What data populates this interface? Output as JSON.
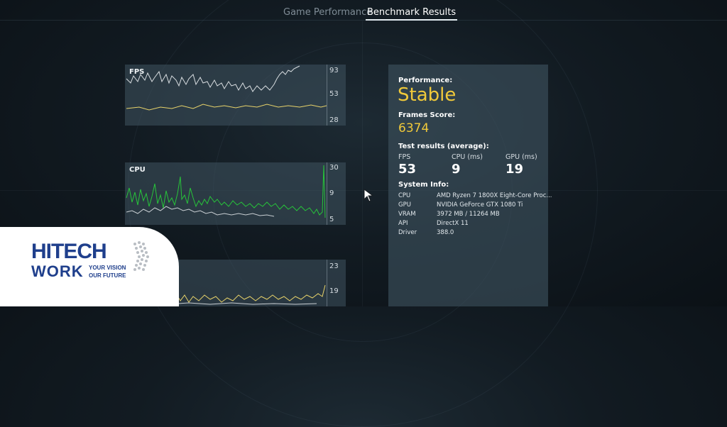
{
  "tabs": [
    {
      "label": "Game Performance",
      "active": false
    },
    {
      "label": "Benchmark Results",
      "active": true
    }
  ],
  "graphs": [
    {
      "label": "FPS",
      "ticks": [
        "93",
        "53",
        "28"
      ]
    },
    {
      "label": "CPU",
      "ticks": [
        "30",
        "9",
        "5"
      ]
    },
    {
      "label": "",
      "ticks": [
        "23",
        "19"
      ]
    }
  ],
  "results": {
    "performance_label": "Performance:",
    "performance_value": "Stable",
    "frames_score_label": "Frames Score:",
    "frames_score_value": "6374",
    "test_results_label": "Test results (average):",
    "stats": [
      {
        "label": "FPS",
        "value": "53"
      },
      {
        "label": "CPU (ms)",
        "value": "9"
      },
      {
        "label": "GPU (ms)",
        "value": "19"
      }
    ],
    "system_info_label": "System Info:",
    "system_info": [
      {
        "key": "CPU",
        "value": "AMD Ryzen 7 1800X Eight-Core Proc..."
      },
      {
        "key": "GPU",
        "value": "NVIDIA GeForce GTX 1080 Ti"
      },
      {
        "key": "VRAM",
        "value": "3972 MB / 11264 MB"
      },
      {
        "key": "API",
        "value": "DirectX 11"
      },
      {
        "key": "Driver",
        "value": "388.0"
      }
    ]
  },
  "logo": {
    "line1": "HITECH",
    "line2": "WORK",
    "tagline1": "YOUR VISION",
    "tagline2": "OUR FUTURE"
  },
  "colors": {
    "accent_yellow": "#f0c93a",
    "cpu_green": "#27c43a",
    "trace_white": "#d8dde0",
    "logo_blue": "#1f3f8c"
  }
}
